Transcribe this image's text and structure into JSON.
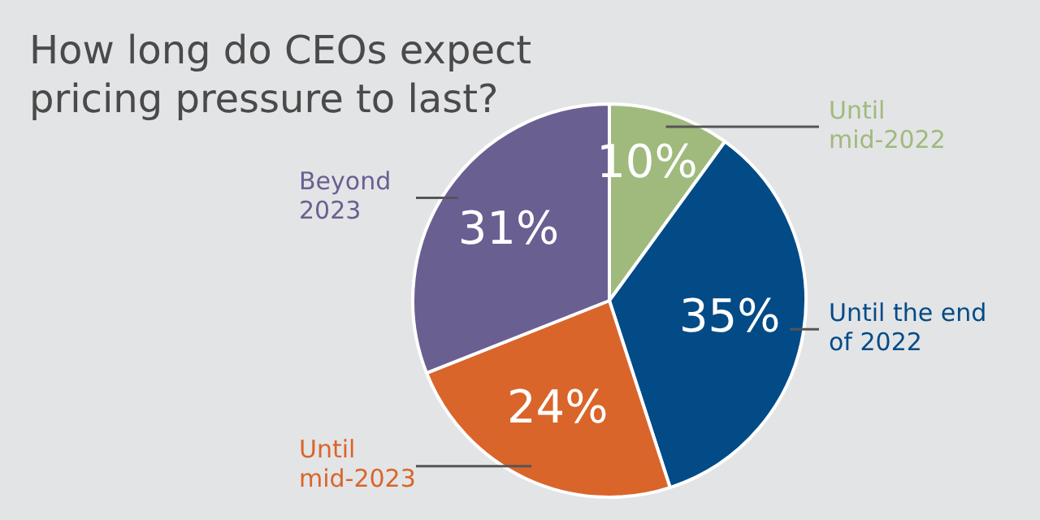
{
  "chart_data": {
    "type": "pie",
    "title": "How long do CEOs expect pricing pressure to last?",
    "categories": [
      "Until mid-2022",
      "Until the end of 2022",
      "Until mid-2023",
      "Beyond 2023"
    ],
    "values": [
      10,
      35,
      24,
      31
    ],
    "colors": [
      "#a0ba7d",
      "#034b87",
      "#d9652b",
      "#6a5f91"
    ],
    "value_labels": [
      "10%",
      "35%",
      "24%",
      "31%"
    ],
    "legend": false
  }
}
